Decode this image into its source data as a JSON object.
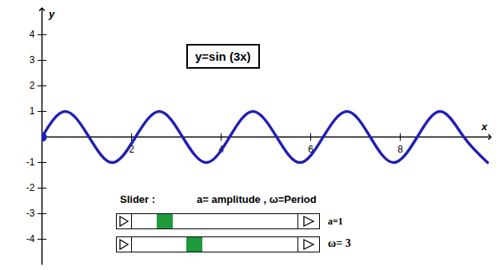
{
  "chart_data": {
    "type": "line",
    "title": "y=sin (3x)",
    "x_label": "x",
    "y_label": "y",
    "x": [
      0,
      0.52,
      1.05,
      1.57,
      2.09,
      2.62,
      3.14,
      3.67,
      4.19,
      4.71,
      5.24,
      5.76,
      6.28,
      6.81,
      7.33,
      7.85,
      8.38,
      8.9,
      9.42,
      9.95
    ],
    "values": [
      0,
      1,
      0,
      -1,
      0,
      1,
      0,
      -1,
      0,
      1,
      0,
      -1,
      0,
      1,
      0,
      -1,
      0,
      1,
      0,
      -1
    ],
    "color": "#1f1fb4",
    "xlim": [
      0,
      10
    ],
    "ylim": [
      -5,
      5
    ],
    "xticks": [
      2,
      4,
      6,
      8
    ],
    "yticks": [
      -4,
      -3,
      -2,
      -1,
      1,
      2,
      3,
      4
    ],
    "grid": false,
    "annotations": {
      "slider_title": "Slider :",
      "slider_legend": "a= amplitude , ω=Period",
      "slider_a": "a=1",
      "slider_omega": "ω= 3"
    }
  }
}
